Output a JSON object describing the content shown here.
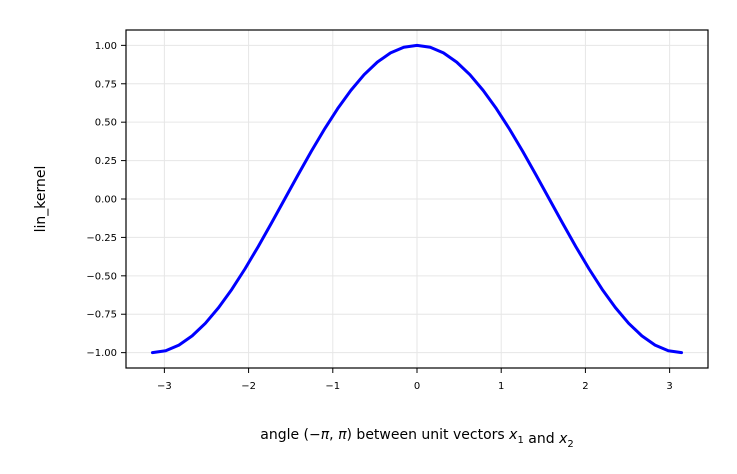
{
  "chart_data": {
    "type": "line",
    "title": "",
    "xlabel": {
      "text": "angle (−π, π) between unit vectors x₁ and x₂",
      "parts": [
        {
          "text": "angle (−",
          "style": "normal"
        },
        {
          "text": "π",
          "style": "italic"
        },
        {
          "text": ", ",
          "style": "normal"
        },
        {
          "text": "π",
          "style": "italic"
        },
        {
          "text": ") between unit vectors ",
          "style": "normal"
        },
        {
          "text": "x",
          "style": "italic"
        },
        {
          "text": "1",
          "style": "sub"
        },
        {
          "text": " and ",
          "style": "normal"
        },
        {
          "text": "x",
          "style": "italic"
        },
        {
          "text": "2",
          "style": "sub"
        }
      ]
    },
    "ylabel": "lin_kernel",
    "xlim": [
      -3.4558,
      3.4558
    ],
    "ylim": [
      -1.1,
      1.1
    ],
    "xticks": [
      -3,
      -2,
      -1,
      0,
      1,
      2,
      3
    ],
    "xtick_labels": [
      "−3",
      "−2",
      "−1",
      "0",
      "1",
      "2",
      "3"
    ],
    "yticks": [
      1.0,
      0.75,
      0.5,
      0.25,
      0.0,
      -0.25,
      -0.5,
      -0.75,
      -1.0
    ],
    "ytick_labels": [
      "1.00",
      "0.75",
      "0.50",
      "0.25",
      "0.00",
      "−0.25",
      "−0.50",
      "−0.75",
      "−1.00"
    ],
    "grid": true,
    "series": [
      {
        "color": "#0000ff",
        "x": [
          -3.1416,
          -2.9845,
          -2.8274,
          -2.6704,
          -2.5133,
          -2.3562,
          -2.1991,
          -2.042,
          -1.885,
          -1.7279,
          -1.5708,
          -1.4137,
          -1.2566,
          -1.0996,
          -0.9425,
          -0.7854,
          -0.6283,
          -0.4712,
          -0.3142,
          -0.1571,
          0.0,
          0.1571,
          0.3142,
          0.4712,
          0.6283,
          0.7854,
          0.9425,
          1.0996,
          1.2566,
          1.4137,
          1.5708,
          1.7279,
          1.885,
          2.042,
          2.1991,
          2.3562,
          2.5133,
          2.6704,
          2.8274,
          2.9845,
          3.1416
        ],
        "y": [
          -1.0,
          -0.988,
          -0.951,
          -0.891,
          -0.809,
          -0.707,
          -0.588,
          -0.454,
          -0.309,
          -0.156,
          0.0,
          0.156,
          0.309,
          0.454,
          0.588,
          0.707,
          0.809,
          0.891,
          0.951,
          0.988,
          1.0,
          0.988,
          0.951,
          0.891,
          0.809,
          0.707,
          0.588,
          0.454,
          0.309,
          0.156,
          0.0,
          -0.156,
          -0.309,
          -0.454,
          -0.588,
          -0.707,
          -0.809,
          -0.891,
          -0.951,
          -0.988,
          -1.0
        ]
      }
    ]
  }
}
